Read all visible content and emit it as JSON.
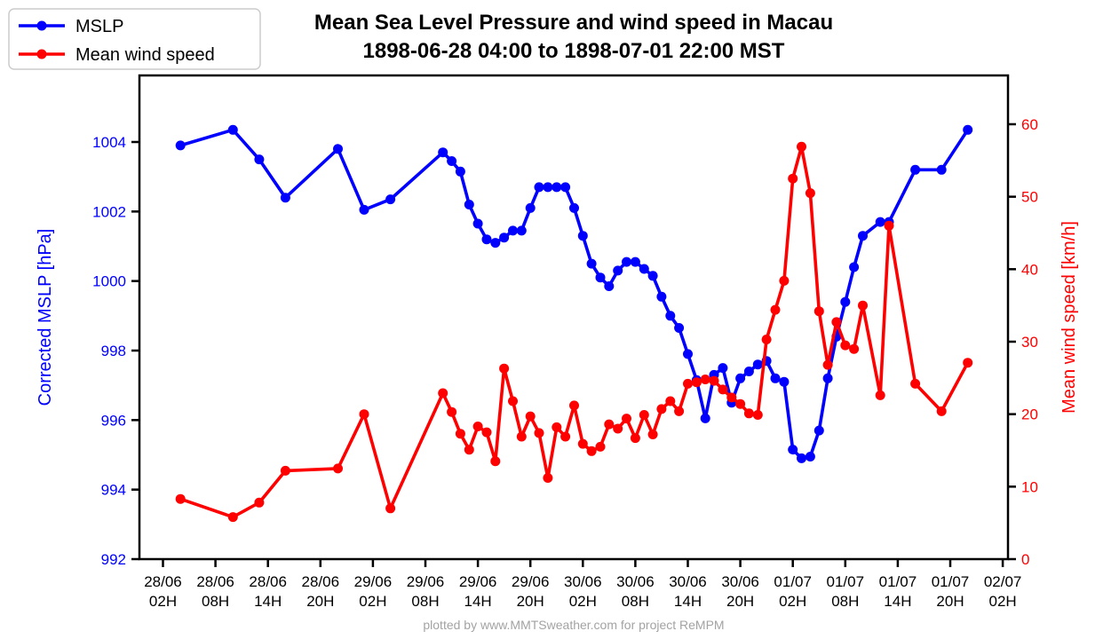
{
  "title": {
    "line1": "Mean Sea Level Pressure and wind speed in Macau",
    "line2": "1898-06-28 04:00 to 1898-07-01 22:00 MST"
  },
  "footer": "plotted by www.MMTSweather.com for project ReMPM",
  "legend": {
    "items": [
      {
        "label": "MSLP",
        "color": "#0000ff"
      },
      {
        "label": "Mean wind speed",
        "color": "#ff0000"
      }
    ]
  },
  "chart_data": {
    "type": "line",
    "title": "Mean Sea Level Pressure and wind speed in Macau",
    "subtitle": "1898-06-28 04:00 to 1898-07-01 22:00 MST",
    "grid": false,
    "legend_position": "upper-left",
    "x_axis": {
      "tick_hours": [
        2,
        8,
        14,
        20,
        26,
        32,
        38,
        44,
        50,
        56,
        62,
        68,
        74,
        80,
        86,
        92,
        98
      ],
      "tick_labels": [
        {
          "date": "28/06",
          "hour": "02H"
        },
        {
          "date": "28/06",
          "hour": "08H"
        },
        {
          "date": "28/06",
          "hour": "14H"
        },
        {
          "date": "28/06",
          "hour": "20H"
        },
        {
          "date": "29/06",
          "hour": "02H"
        },
        {
          "date": "29/06",
          "hour": "08H"
        },
        {
          "date": "29/06",
          "hour": "14H"
        },
        {
          "date": "29/06",
          "hour": "20H"
        },
        {
          "date": "30/06",
          "hour": "02H"
        },
        {
          "date": "30/06",
          "hour": "08H"
        },
        {
          "date": "30/06",
          "hour": "14H"
        },
        {
          "date": "30/06",
          "hour": "20H"
        },
        {
          "date": "01/07",
          "hour": "02H"
        },
        {
          "date": "01/07",
          "hour": "08H"
        },
        {
          "date": "01/07",
          "hour": "14H"
        },
        {
          "date": "01/07",
          "hour": "20H"
        },
        {
          "date": "02/07",
          "hour": "02H"
        }
      ]
    },
    "y_left": {
      "label": "Corrected MSLP [hPa]",
      "color": "#0000ff",
      "ticks": [
        992,
        994,
        996,
        998,
        1000,
        1002,
        1004
      ],
      "range": [
        992,
        1005.9
      ]
    },
    "y_right": {
      "label": "Mean wind speed [km/h]",
      "color": "#ff0000",
      "ticks": [
        0,
        10,
        20,
        30,
        40,
        50,
        60
      ],
      "range": [
        0,
        66.7
      ]
    },
    "series": [
      {
        "name": "MSLP",
        "axis": "left",
        "color": "#0000ff",
        "unit": "hPa",
        "value_key": "mslp"
      },
      {
        "name": "Mean wind speed",
        "axis": "right",
        "color": "#ff0000",
        "unit": "km/h",
        "value_key": "wind"
      }
    ],
    "points": [
      {
        "t": 4,
        "time": "28/06 04H",
        "mslp": 1003.9,
        "wind": 8.3
      },
      {
        "t": 10,
        "time": "28/06 10H",
        "mslp": 1004.35,
        "wind": 5.8
      },
      {
        "t": 13,
        "time": "28/06 13H",
        "mslp": 1003.5,
        "wind": 7.8
      },
      {
        "t": 16,
        "time": "28/06 16H",
        "mslp": 1002.4,
        "wind": 12.2
      },
      {
        "t": 22,
        "time": "28/06 22H",
        "mslp": 1003.8,
        "wind": 12.5
      },
      {
        "t": 25,
        "time": "29/06 01H",
        "mslp": 1002.05,
        "wind": 20.0
      },
      {
        "t": 28,
        "time": "29/06 04H",
        "mslp": 1002.35,
        "wind": 7.0
      },
      {
        "t": 34,
        "time": "29/06 10H",
        "mslp": 1003.7,
        "wind": 22.9
      },
      {
        "t": 35,
        "time": "29/06 11H",
        "mslp": 1003.45,
        "wind": 20.3
      },
      {
        "t": 36,
        "time": "29/06 12H",
        "mslp": 1003.15,
        "wind": 17.3
      },
      {
        "t": 37,
        "time": "29/06 13H",
        "mslp": 1002.2,
        "wind": 15.1
      },
      {
        "t": 38,
        "time": "29/06 14H",
        "mslp": 1001.65,
        "wind": 18.3
      },
      {
        "t": 39,
        "time": "29/06 15H",
        "mslp": 1001.2,
        "wind": 17.5
      },
      {
        "t": 40,
        "time": "29/06 16H",
        "mslp": 1001.1,
        "wind": 13.5
      },
      {
        "t": 41,
        "time": "29/06 17H",
        "mslp": 1001.25,
        "wind": 26.3
      },
      {
        "t": 42,
        "time": "29/06 18H",
        "mslp": 1001.45,
        "wind": 21.8
      },
      {
        "t": 43,
        "time": "29/06 19H",
        "mslp": 1001.45,
        "wind": 16.9
      },
      {
        "t": 44,
        "time": "29/06 20H",
        "mslp": 1002.1,
        "wind": 19.7
      },
      {
        "t": 45,
        "time": "29/06 21H",
        "mslp": 1002.7,
        "wind": 17.4
      },
      {
        "t": 46,
        "time": "29/06 22H",
        "mslp": 1002.7,
        "wind": 11.2
      },
      {
        "t": 47,
        "time": "29/06 23H",
        "mslp": 1002.7,
        "wind": 18.2
      },
      {
        "t": 48,
        "time": "30/06 00H",
        "mslp": 1002.7,
        "wind": 16.9
      },
      {
        "t": 49,
        "time": "30/06 01H",
        "mslp": 1002.1,
        "wind": 21.2
      },
      {
        "t": 50,
        "time": "30/06 02H",
        "mslp": 1001.3,
        "wind": 15.9
      },
      {
        "t": 51,
        "time": "30/06 03H",
        "mslp": 1000.5,
        "wind": 14.9
      },
      {
        "t": 52,
        "time": "30/06 04H",
        "mslp": 1000.1,
        "wind": 15.5
      },
      {
        "t": 53,
        "time": "30/06 05H",
        "mslp": 999.85,
        "wind": 18.6
      },
      {
        "t": 54,
        "time": "30/06 06H",
        "mslp": 1000.3,
        "wind": 18.0
      },
      {
        "t": 55,
        "time": "30/06 07H",
        "mslp": 1000.55,
        "wind": 19.4
      },
      {
        "t": 56,
        "time": "30/06 08H",
        "mslp": 1000.55,
        "wind": 16.7
      },
      {
        "t": 57,
        "time": "30/06 09H",
        "mslp": 1000.35,
        "wind": 19.9
      },
      {
        "t": 58,
        "time": "30/06 10H",
        "mslp": 1000.15,
        "wind": 17.2
      },
      {
        "t": 59,
        "time": "30/06 11H",
        "mslp": 999.55,
        "wind": 20.7
      },
      {
        "t": 60,
        "time": "30/06 12H",
        "mslp": 999.0,
        "wind": 21.8
      },
      {
        "t": 61,
        "time": "30/06 13H",
        "mslp": 998.65,
        "wind": 20.4
      },
      {
        "t": 62,
        "time": "30/06 14H",
        "mslp": 997.9,
        "wind": 24.2
      },
      {
        "t": 63,
        "time": "30/06 15H",
        "mslp": 997.15,
        "wind": 24.4
      },
      {
        "t": 64,
        "time": "30/06 16H",
        "mslp": 996.05,
        "wind": 24.8
      },
      {
        "t": 65,
        "time": "30/06 17H",
        "mslp": 997.3,
        "wind": 24.6
      },
      {
        "t": 66,
        "time": "30/06 18H",
        "mslp": 997.5,
        "wind": 23.4
      },
      {
        "t": 67,
        "time": "30/06 19H",
        "mslp": 996.5,
        "wind": 22.3
      },
      {
        "t": 68,
        "time": "30/06 20H",
        "mslp": 997.2,
        "wind": 21.4
      },
      {
        "t": 69,
        "time": "30/06 21H",
        "mslp": 997.4,
        "wind": 20.1
      },
      {
        "t": 70,
        "time": "30/06 22H",
        "mslp": 997.6,
        "wind": 19.9
      },
      {
        "t": 71,
        "time": "30/06 23H",
        "mslp": 997.7,
        "wind": 30.3
      },
      {
        "t": 72,
        "time": "01/07 00H",
        "mslp": 997.2,
        "wind": 34.4
      },
      {
        "t": 73,
        "time": "01/07 01H",
        "mslp": 997.1,
        "wind": 38.4
      },
      {
        "t": 74,
        "time": "01/07 02H",
        "mslp": 995.15,
        "wind": 52.5
      },
      {
        "t": 75,
        "time": "01/07 03H",
        "mslp": 994.9,
        "wind": 56.9
      },
      {
        "t": 76,
        "time": "01/07 04H",
        "mslp": 994.95,
        "wind": 50.5
      },
      {
        "t": 77,
        "time": "01/07 05H",
        "mslp": 995.7,
        "wind": 34.2
      },
      {
        "t": 78,
        "time": "01/07 06H",
        "mslp": 997.2,
        "wind": 26.8
      },
      {
        "t": 79,
        "time": "01/07 07H",
        "mslp": 998.4,
        "wind": 32.7
      },
      {
        "t": 80,
        "time": "01/07 08H",
        "mslp": 999.4,
        "wind": 29.5
      },
      {
        "t": 81,
        "time": "01/07 09H",
        "mslp": 1000.4,
        "wind": 29.0
      },
      {
        "t": 82,
        "time": "01/07 10H",
        "mslp": 1001.3,
        "wind": 35.0
      },
      {
        "t": 84,
        "time": "01/07 12H",
        "mslp": 1001.7,
        "wind": 22.6
      },
      {
        "t": 85,
        "time": "01/07 13H",
        "mslp": 1001.7,
        "wind": 46.0
      },
      {
        "t": 88,
        "time": "01/07 16H",
        "mslp": 1003.2,
        "wind": 24.2
      },
      {
        "t": 91,
        "time": "01/07 19H",
        "mslp": 1003.2,
        "wind": 20.4
      },
      {
        "t": 94,
        "time": "01/07 22H",
        "mslp": 1004.35,
        "wind": 27.1
      }
    ]
  }
}
